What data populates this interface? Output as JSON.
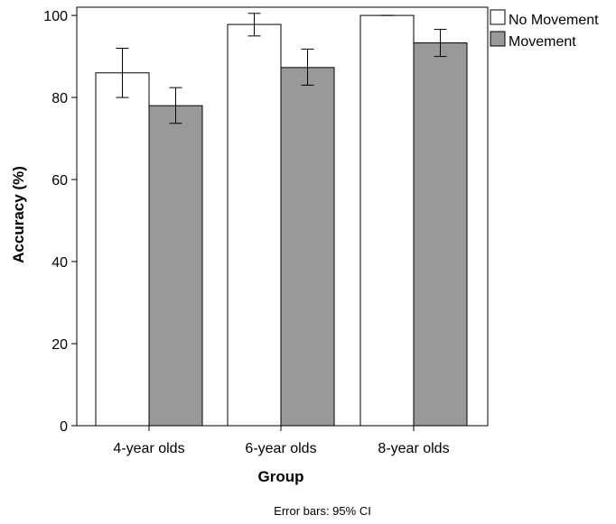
{
  "chart_data": {
    "type": "bar",
    "title": "",
    "xlabel": "Group",
    "ylabel": "Accuracy (%)",
    "categories": [
      "4-year olds",
      "6-year olds",
      "8-year olds"
    ],
    "ylim": [
      0,
      100
    ],
    "yticks": [
      "0",
      "20",
      "40",
      "60",
      "80",
      "100"
    ],
    "series": [
      {
        "name": "No Movement",
        "color": "#ffffff",
        "values": [
          86,
          97.8,
          100
        ],
        "ci_low": [
          80,
          95,
          100
        ],
        "ci_high": [
          92,
          100.5,
          100
        ]
      },
      {
        "name": "Movement",
        "color": "#999999",
        "values": [
          78,
          87.3,
          93.3
        ],
        "ci_low": [
          73.7,
          83,
          90
        ],
        "ci_high": [
          82.4,
          91.8,
          96.6
        ]
      }
    ],
    "legend_position": "top-right",
    "grid": false,
    "footnote": "Error bars: 95% CI"
  }
}
